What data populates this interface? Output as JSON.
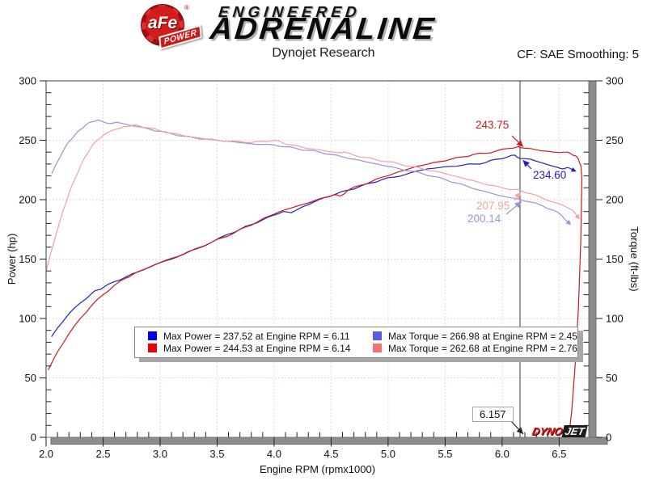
{
  "header": {
    "logo": {
      "badge_main": "aFe",
      "badge_reg": "®",
      "badge_sub": "POWER",
      "line1": "ENGINEERED",
      "line2": "ADRENALINE"
    },
    "title": "Dynojet Research",
    "correction_label": "CF: SAE Smoothing: 5"
  },
  "watermark": {
    "part1": "DYNO",
    "part2": "JET"
  },
  "chart_data": {
    "type": "line",
    "title": "Dynojet Research",
    "xlabel": "Engine RPM (rpmx1000)",
    "ylabel_left": "Power (hp)",
    "ylabel_right": "Torque (ft-lbs)",
    "xlim": [
      2.0,
      6.76
    ],
    "ylim": [
      0,
      300
    ],
    "xticks": [
      "2.0",
      "2.5",
      "3.0",
      "3.5",
      "4.0",
      "4.5",
      "5.0",
      "5.5",
      "6.0",
      "6.5"
    ],
    "yticks": [
      "0",
      "50",
      "100",
      "150",
      "200",
      "250",
      "300"
    ],
    "x_minor_step": 0.1,
    "y_minor_step": 10,
    "grid": true,
    "legend_position": "inside-bottom-center",
    "cursor": {
      "rpm": 6.157,
      "label": "6.157"
    },
    "series": [
      {
        "id": "power-1",
        "axis": "left",
        "color": "#2020c0",
        "cursor_value": "234.60",
        "max": {
          "value": 237.52,
          "rpm": 6.11
        },
        "end_arrow": true,
        "points": [
          [
            2.05,
            85
          ],
          [
            2.1,
            92
          ],
          [
            2.2,
            104
          ],
          [
            2.3,
            113
          ],
          [
            2.4,
            121
          ],
          [
            2.45,
            124
          ],
          [
            2.5,
            126
          ],
          [
            2.6,
            131
          ],
          [
            2.7,
            135
          ],
          [
            2.8,
            139
          ],
          [
            2.9,
            143
          ],
          [
            3.0,
            147
          ],
          [
            3.1,
            150
          ],
          [
            3.2,
            154
          ],
          [
            3.3,
            158
          ],
          [
            3.45,
            164
          ],
          [
            3.6,
            171
          ],
          [
            3.7,
            175
          ],
          [
            3.8,
            179
          ],
          [
            3.9,
            183
          ],
          [
            4.0,
            187
          ],
          [
            4.08,
            190
          ],
          [
            4.15,
            189
          ],
          [
            4.25,
            194
          ],
          [
            4.35,
            198
          ],
          [
            4.45,
            202
          ],
          [
            4.55,
            205
          ],
          [
            4.65,
            208
          ],
          [
            4.75,
            211
          ],
          [
            4.85,
            214
          ],
          [
            4.95,
            217
          ],
          [
            5.05,
            219
          ],
          [
            5.15,
            221
          ],
          [
            5.25,
            224
          ],
          [
            5.35,
            226
          ],
          [
            5.45,
            227
          ],
          [
            5.55,
            228
          ],
          [
            5.65,
            229
          ],
          [
            5.75,
            230
          ],
          [
            5.85,
            231
          ],
          [
            5.95,
            234
          ],
          [
            6.05,
            236
          ],
          [
            6.11,
            237.5
          ],
          [
            6.157,
            234.6
          ],
          [
            6.25,
            234
          ],
          [
            6.35,
            231
          ],
          [
            6.45,
            228
          ],
          [
            6.52,
            226
          ],
          [
            6.57,
            227
          ],
          [
            6.62,
            225
          ]
        ]
      },
      {
        "id": "power-2",
        "axis": "left",
        "color": "#cc1a1a",
        "cursor_value": "243.75",
        "max": {
          "value": 244.53,
          "rpm": 6.14
        },
        "end_arrow": false,
        "points": [
          [
            2.02,
            57
          ],
          [
            2.1,
            72
          ],
          [
            2.2,
            87
          ],
          [
            2.3,
            100
          ],
          [
            2.4,
            111
          ],
          [
            2.5,
            120
          ],
          [
            2.6,
            128
          ],
          [
            2.7,
            134
          ],
          [
            2.76,
            137
          ],
          [
            2.85,
            141
          ],
          [
            2.95,
            145
          ],
          [
            3.05,
            149
          ],
          [
            3.15,
            152
          ],
          [
            3.25,
            156
          ],
          [
            3.35,
            160
          ],
          [
            3.45,
            164
          ],
          [
            3.55,
            168
          ],
          [
            3.65,
            172
          ],
          [
            3.75,
            177
          ],
          [
            3.85,
            181
          ],
          [
            3.95,
            186
          ],
          [
            4.05,
            190
          ],
          [
            4.15,
            193
          ],
          [
            4.25,
            196
          ],
          [
            4.35,
            199
          ],
          [
            4.45,
            202
          ],
          [
            4.52,
            204
          ],
          [
            4.58,
            203
          ],
          [
            4.65,
            208
          ],
          [
            4.75,
            212
          ],
          [
            4.85,
            215
          ],
          [
            4.95,
            219
          ],
          [
            5.05,
            222
          ],
          [
            5.15,
            225
          ],
          [
            5.25,
            228
          ],
          [
            5.35,
            230
          ],
          [
            5.45,
            232
          ],
          [
            5.55,
            234
          ],
          [
            5.65,
            236
          ],
          [
            5.75,
            238
          ],
          [
            5.85,
            239
          ],
          [
            5.95,
            241
          ],
          [
            6.05,
            243
          ],
          [
            6.14,
            244.5
          ],
          [
            6.157,
            243.75
          ],
          [
            6.25,
            243
          ],
          [
            6.35,
            241
          ],
          [
            6.45,
            240
          ],
          [
            6.55,
            240
          ],
          [
            6.6,
            239
          ],
          [
            6.64,
            237
          ],
          [
            6.67,
            234
          ],
          [
            6.69,
            229
          ],
          [
            6.7,
            218
          ],
          [
            6.69,
            165
          ],
          [
            6.67,
            110
          ],
          [
            6.64,
            60
          ],
          [
            6.61,
            22
          ],
          [
            6.585,
            0
          ]
        ]
      },
      {
        "id": "torque-1",
        "axis": "right",
        "color": "#9494da",
        "cursor_value": "200.14",
        "max": {
          "value": 266.98,
          "rpm": 2.45
        },
        "end_arrow": true,
        "points": [
          [
            2.05,
            222
          ],
          [
            2.1,
            232
          ],
          [
            2.15,
            241
          ],
          [
            2.2,
            249
          ],
          [
            2.25,
            254
          ],
          [
            2.3,
            259
          ],
          [
            2.35,
            263
          ],
          [
            2.4,
            265.5
          ],
          [
            2.45,
            267
          ],
          [
            2.5,
            265.5
          ],
          [
            2.56,
            264
          ],
          [
            2.62,
            265
          ],
          [
            2.7,
            263.5
          ],
          [
            2.8,
            261.5
          ],
          [
            2.9,
            259.5
          ],
          [
            3.0,
            257.5
          ],
          [
            3.1,
            255.5
          ],
          [
            3.2,
            253.5
          ],
          [
            3.3,
            252
          ],
          [
            3.4,
            251
          ],
          [
            3.5,
            250
          ],
          [
            3.6,
            249
          ],
          [
            3.7,
            248
          ],
          [
            3.8,
            247
          ],
          [
            3.9,
            246.5
          ],
          [
            4.0,
            246
          ],
          [
            4.1,
            244.5
          ],
          [
            4.2,
            243
          ],
          [
            4.3,
            241.5
          ],
          [
            4.4,
            240
          ],
          [
            4.5,
            238
          ],
          [
            4.6,
            236
          ],
          [
            4.7,
            234
          ],
          [
            4.8,
            232
          ],
          [
            4.9,
            230
          ],
          [
            5.0,
            228
          ],
          [
            5.1,
            226
          ],
          [
            5.2,
            224
          ],
          [
            5.3,
            222
          ],
          [
            5.4,
            219.5
          ],
          [
            5.5,
            217
          ],
          [
            5.6,
            214
          ],
          [
            5.7,
            211
          ],
          [
            5.8,
            208
          ],
          [
            5.9,
            205.5
          ],
          [
            6.0,
            203
          ],
          [
            6.08,
            201.5
          ],
          [
            6.157,
            200.14
          ],
          [
            6.25,
            198
          ],
          [
            6.35,
            195
          ],
          [
            6.45,
            191
          ],
          [
            6.52,
            187
          ],
          [
            6.58,
            181
          ]
        ]
      },
      {
        "id": "torque-2",
        "axis": "right",
        "color": "#f2a2a2",
        "cursor_value": "207.95",
        "max": {
          "value": 262.68,
          "rpm": 2.76
        },
        "end_arrow": true,
        "points": [
          [
            2.0,
            140
          ],
          [
            2.05,
            158
          ],
          [
            2.1,
            175
          ],
          [
            2.15,
            191
          ],
          [
            2.2,
            205
          ],
          [
            2.25,
            217
          ],
          [
            2.3,
            228
          ],
          [
            2.35,
            237
          ],
          [
            2.4,
            245
          ],
          [
            2.45,
            250
          ],
          [
            2.5,
            254
          ],
          [
            2.55,
            257
          ],
          [
            2.6,
            259
          ],
          [
            2.66,
            260.5
          ],
          [
            2.7,
            261.5
          ],
          [
            2.76,
            262.7
          ],
          [
            2.82,
            262
          ],
          [
            2.9,
            260.5
          ],
          [
            3.0,
            258
          ],
          [
            3.1,
            256
          ],
          [
            3.2,
            254
          ],
          [
            3.3,
            252.5
          ],
          [
            3.4,
            251
          ],
          [
            3.5,
            250
          ],
          [
            3.6,
            249
          ],
          [
            3.7,
            249
          ],
          [
            3.8,
            248
          ],
          [
            3.9,
            249
          ],
          [
            4.0,
            250
          ],
          [
            4.07,
            248
          ],
          [
            4.15,
            246
          ],
          [
            4.25,
            244
          ],
          [
            4.35,
            242.5
          ],
          [
            4.45,
            241
          ],
          [
            4.55,
            239.5
          ],
          [
            4.62,
            240
          ],
          [
            4.7,
            237.5
          ],
          [
            4.8,
            235.5
          ],
          [
            4.9,
            233.5
          ],
          [
            5.0,
            232
          ],
          [
            5.1,
            230
          ],
          [
            5.2,
            228
          ],
          [
            5.3,
            226
          ],
          [
            5.4,
            224
          ],
          [
            5.5,
            222
          ],
          [
            5.6,
            219.5
          ],
          [
            5.7,
            217
          ],
          [
            5.8,
            214.5
          ],
          [
            5.9,
            212
          ],
          [
            6.0,
            210
          ],
          [
            6.1,
            208.5
          ],
          [
            6.157,
            207.95
          ],
          [
            6.25,
            205
          ],
          [
            6.35,
            201.5
          ],
          [
            6.45,
            198
          ],
          [
            6.55,
            194.5
          ],
          [
            6.62,
            191
          ],
          [
            6.66,
            186
          ]
        ]
      }
    ],
    "legend": [
      {
        "swatch": "#0000ee",
        "label": "Max Power = 237.52 at Engine RPM = 6.11"
      },
      {
        "swatch": "#ee0000",
        "label": "Max Power = 244.53 at Engine RPM = 6.14"
      },
      {
        "swatch": "#5a5ae8",
        "label": "Max Torque = 266.98 at Engine RPM = 2.45"
      },
      {
        "swatch": "#fa7070",
        "label": "Max Torque = 262.68 at Engine RPM = 2.76"
      }
    ]
  }
}
